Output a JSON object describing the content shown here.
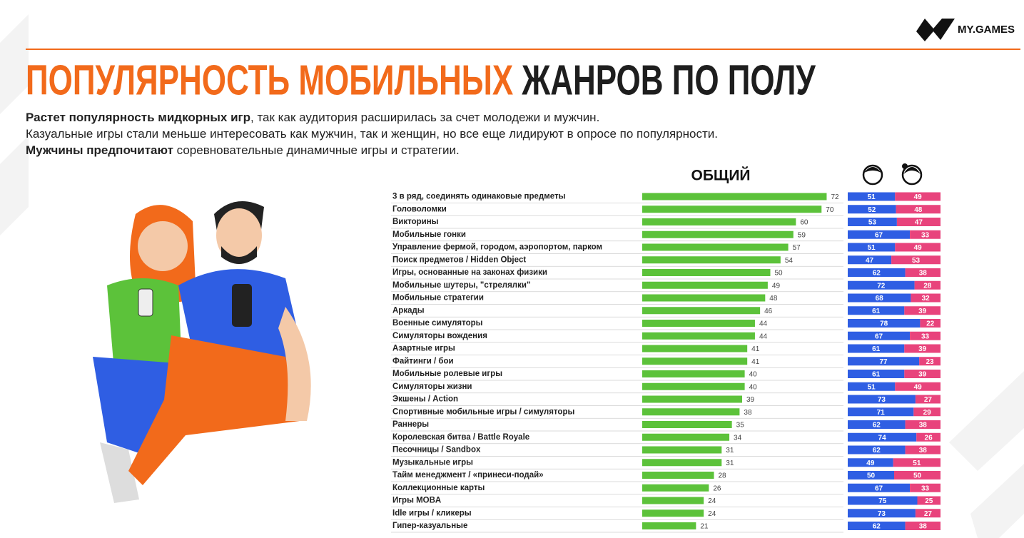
{
  "header": {
    "logo": "MY.GAMES",
    "title_accent": "ПОПУЛЯРНОСТЬ МОБИЛЬНЫХ",
    "title_rest": "ЖАНРОВ ПО ПОЛУ"
  },
  "intro": [
    {
      "bold": "Растет популярность мидкорных игр",
      "text": ", так как аудитория расширилась за счет молодежи и мужчин."
    },
    {
      "text": "Казуальные игры стали меньше интересовать как мужчин, так и женщин, но все еще лидируют в опросе по популярности."
    },
    {
      "bold": "Мужчины предпочитают",
      "text": " соревновательные динамичные игры и стратегии."
    }
  ],
  "chart_data": [
    {
      "type": "bar",
      "orientation": "horizontal",
      "title": "ОБЩИЙ",
      "color": "#5cc23a",
      "xlim": [
        0,
        78
      ],
      "categories": [
        "3 в ряд, соединять одинаковые предметы",
        "Головоломки",
        "Викторины",
        "Мобильные гонки",
        "Управление фермой, городом, аэропортом, парком",
        "Поиск предметов / Hidden Object",
        "Игры, основанные на законах физики",
        "Мобильные шутеры, \"стрелялки\"",
        "Мобильные стратегии",
        "Аркады",
        "Военные симуляторы",
        "Симуляторы вождения",
        "Азартные игры",
        "Файтинги / бои",
        "Мобильные ролевые игры",
        "Симуляторы жизни",
        "Экшены / Action",
        "Спортивные мобильные игры / симуляторы",
        "Раннеры",
        "Королевская битва / Battle Royale",
        "Песочницы / Sandbox",
        "Музыкальные игры",
        "Тайм менеджмент / «принеси-подай»",
        "Коллекционные карты",
        "Игры MOBA",
        "Idle игры / кликеры",
        "Гипер-казуальные"
      ],
      "values": [
        72,
        70,
        60,
        59,
        57,
        54,
        50,
        49,
        48,
        46,
        44,
        44,
        41,
        41,
        40,
        40,
        39,
        38,
        35,
        34,
        31,
        31,
        28,
        26,
        24,
        24,
        21
      ]
    },
    {
      "type": "stacked_bar",
      "orientation": "horizontal",
      "xlim": [
        0,
        100
      ],
      "series": [
        {
          "color": "#2f5ee3",
          "values": [
            51,
            52,
            53,
            67,
            51,
            47,
            62,
            72,
            68,
            61,
            78,
            67,
            61,
            77,
            61,
            51,
            73,
            71,
            62,
            74,
            62,
            49,
            50,
            67,
            75,
            73,
            62
          ]
        },
        {
          "color": "#e8437c",
          "values": [
            49,
            48,
            47,
            33,
            49,
            53,
            38,
            28,
            32,
            39,
            22,
            33,
            39,
            23,
            39,
            49,
            27,
            29,
            38,
            26,
            38,
            51,
            50,
            33,
            25,
            27,
            38
          ]
        }
      ]
    }
  ]
}
